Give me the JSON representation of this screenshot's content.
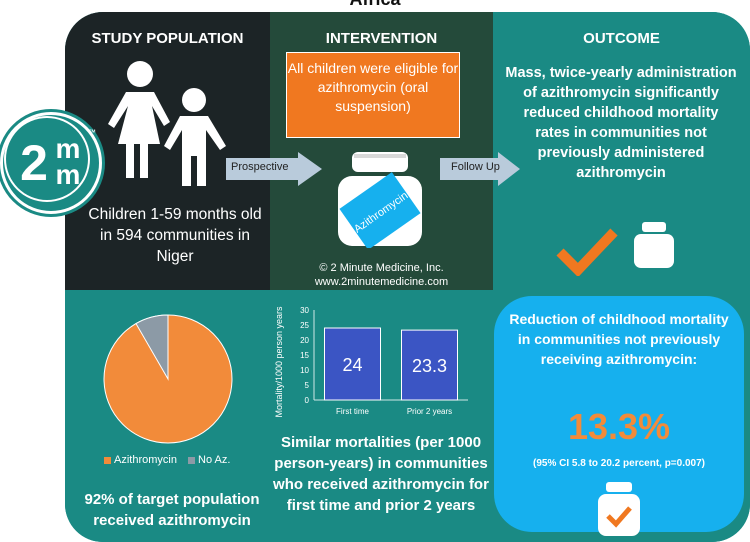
{
  "page_title": "Africa",
  "study": {
    "header": "STUDY POPULATION",
    "description": "Children 1-59 months old in 594 communities in Niger"
  },
  "intervention": {
    "header": "INTERVENTION",
    "box_text": "All children were eligible for azithromycin (oral suspension)",
    "bottle_label": "Azithromycin",
    "copyright": "© 2 Minute Medicine, Inc.",
    "website": "www.2minutemedicine.com"
  },
  "outcome": {
    "header": "OUTCOME",
    "text": "Mass, twice-yearly administration of azithromycin significantly reduced childhood mortality rates in communities not previously administered azithromycin"
  },
  "arrows": {
    "prospective": "Prospective",
    "follow_up": "Follow Up"
  },
  "logo": {
    "top": "m",
    "left": "2",
    "bottom": "m",
    "tm": "™"
  },
  "pie": {
    "legend": [
      "Azithromycin",
      "No Az."
    ],
    "caption": "92% of target population received azithromycin",
    "colors": {
      "azithromycin": "#f28b3a",
      "no_az": "#8c9aa6"
    }
  },
  "chart_data": {
    "type": "bar",
    "categories": [
      "First time",
      "Prior 2 years"
    ],
    "values": [
      24,
      23.3
    ],
    "ylabel": "Mortality/1000 person years",
    "ylim": [
      0,
      30
    ],
    "yticks": [
      0,
      5,
      10,
      15,
      20,
      25,
      30
    ],
    "value_labels": [
      "24",
      "23.3"
    ],
    "bar_color": "#3b55c4",
    "caption": "Similar mortalities (per 1000 person-years) in communities who received azithromycin for first time and prior 2 years"
  },
  "callout": {
    "title": "Reduction of childhood mortality in communities not previously receiving azithromycin:",
    "percent": "13.3%",
    "ci": "(95% CI 5.8 to 20.2 percent, p=0.007)"
  },
  "colors": {
    "orange": "#f07820",
    "teal": "#1a8a84",
    "dark": "#1c2426",
    "blue": "#16b0ee"
  }
}
